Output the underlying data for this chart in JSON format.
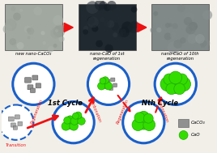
{
  "fig_width": 2.68,
  "fig_height": 1.89,
  "dpi": 100,
  "bg_color": "#f2efe9",
  "circle_color": "#1a5fc8",
  "caco3_color": "#909090",
  "cao_color": "#33dd00",
  "cao_edge": "#22aa00",
  "red_solid": "#ee1111",
  "red_dashed": "#ee1111",
  "title1": "new nano-CaCO₃",
  "title2": "nano-CaO of 1st\nregeneration",
  "title3": "nano-CaO of 10th\nregeneration",
  "label_1st": "1st Cycle",
  "label_nth": "Nth Cycle",
  "label_regen1": "Regeneration",
  "label_carb1": "Carbonation",
  "label_regen2": "Regeneration",
  "label_carb2": "Carbonation",
  "label_transition": "Transition",
  "legend_caco3": "CaCO₃",
  "legend_cao": "CaO",
  "photo1_color": "#a0a8a0",
  "photo2_color": "#202830",
  "photo3_color": "#808888"
}
